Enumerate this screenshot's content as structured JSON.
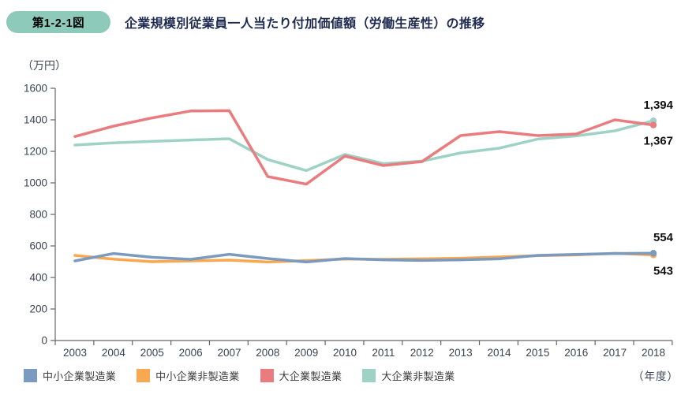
{
  "header": {
    "badge_label": "第1-2-1図",
    "title": "企業規模別従業員一人当たり付加価値額（労働生産性）の推移"
  },
  "chart_data": {
    "type": "line",
    "title": "企業規模別従業員一人当たり付加価値額（労働生産性）の推移",
    "y_unit_label": "（万円）",
    "x_unit_label": "（年度）",
    "xlabel": "年度",
    "ylabel": "万円",
    "ylim": [
      0,
      1600
    ],
    "ytick_interval": 200,
    "grid": false,
    "legend_position": "bottom",
    "categories": [
      "2003",
      "2004",
      "2005",
      "2006",
      "2007",
      "2008",
      "2009",
      "2010",
      "2011",
      "2012",
      "2013",
      "2014",
      "2015",
      "2016",
      "2017",
      "2018"
    ],
    "series": [
      {
        "name": "中小企業製造業",
        "color": "#7b9abf",
        "values": [
          505,
          552,
          528,
          515,
          547,
          520,
          498,
          520,
          512,
          508,
          512,
          518,
          540,
          546,
          552,
          554
        ],
        "end_label": "554",
        "end_label_position": "above"
      },
      {
        "name": "中小企業非製造業",
        "color": "#f7a850",
        "values": [
          540,
          516,
          500,
          505,
          510,
          498,
          507,
          517,
          515,
          518,
          522,
          530,
          538,
          543,
          553,
          543
        ],
        "end_label": "543",
        "end_label_position": "below"
      },
      {
        "name": "大企業製造業",
        "color": "#e97c7f",
        "values": [
          1294,
          1360,
          1412,
          1456,
          1458,
          1040,
          992,
          1170,
          1110,
          1135,
          1300,
          1325,
          1300,
          1310,
          1400,
          1367
        ],
        "end_label": "1,367",
        "end_label_position": "below"
      },
      {
        "name": "大企業非製造業",
        "color": "#9ed2c5",
        "values": [
          1240,
          1254,
          1263,
          1272,
          1280,
          1148,
          1078,
          1180,
          1122,
          1138,
          1190,
          1220,
          1278,
          1298,
          1330,
          1394
        ],
        "end_label": "1,394",
        "end_label_position": "above"
      }
    ]
  },
  "colors": {
    "badge_bg": "#8ecab9",
    "badge_border": "#7bbcaa",
    "badge_text": "#1f2a50",
    "title_text": "#1f2a50",
    "axis_line": "#666666",
    "tick_text": "#3b4354",
    "value_label_text": "#111111"
  }
}
